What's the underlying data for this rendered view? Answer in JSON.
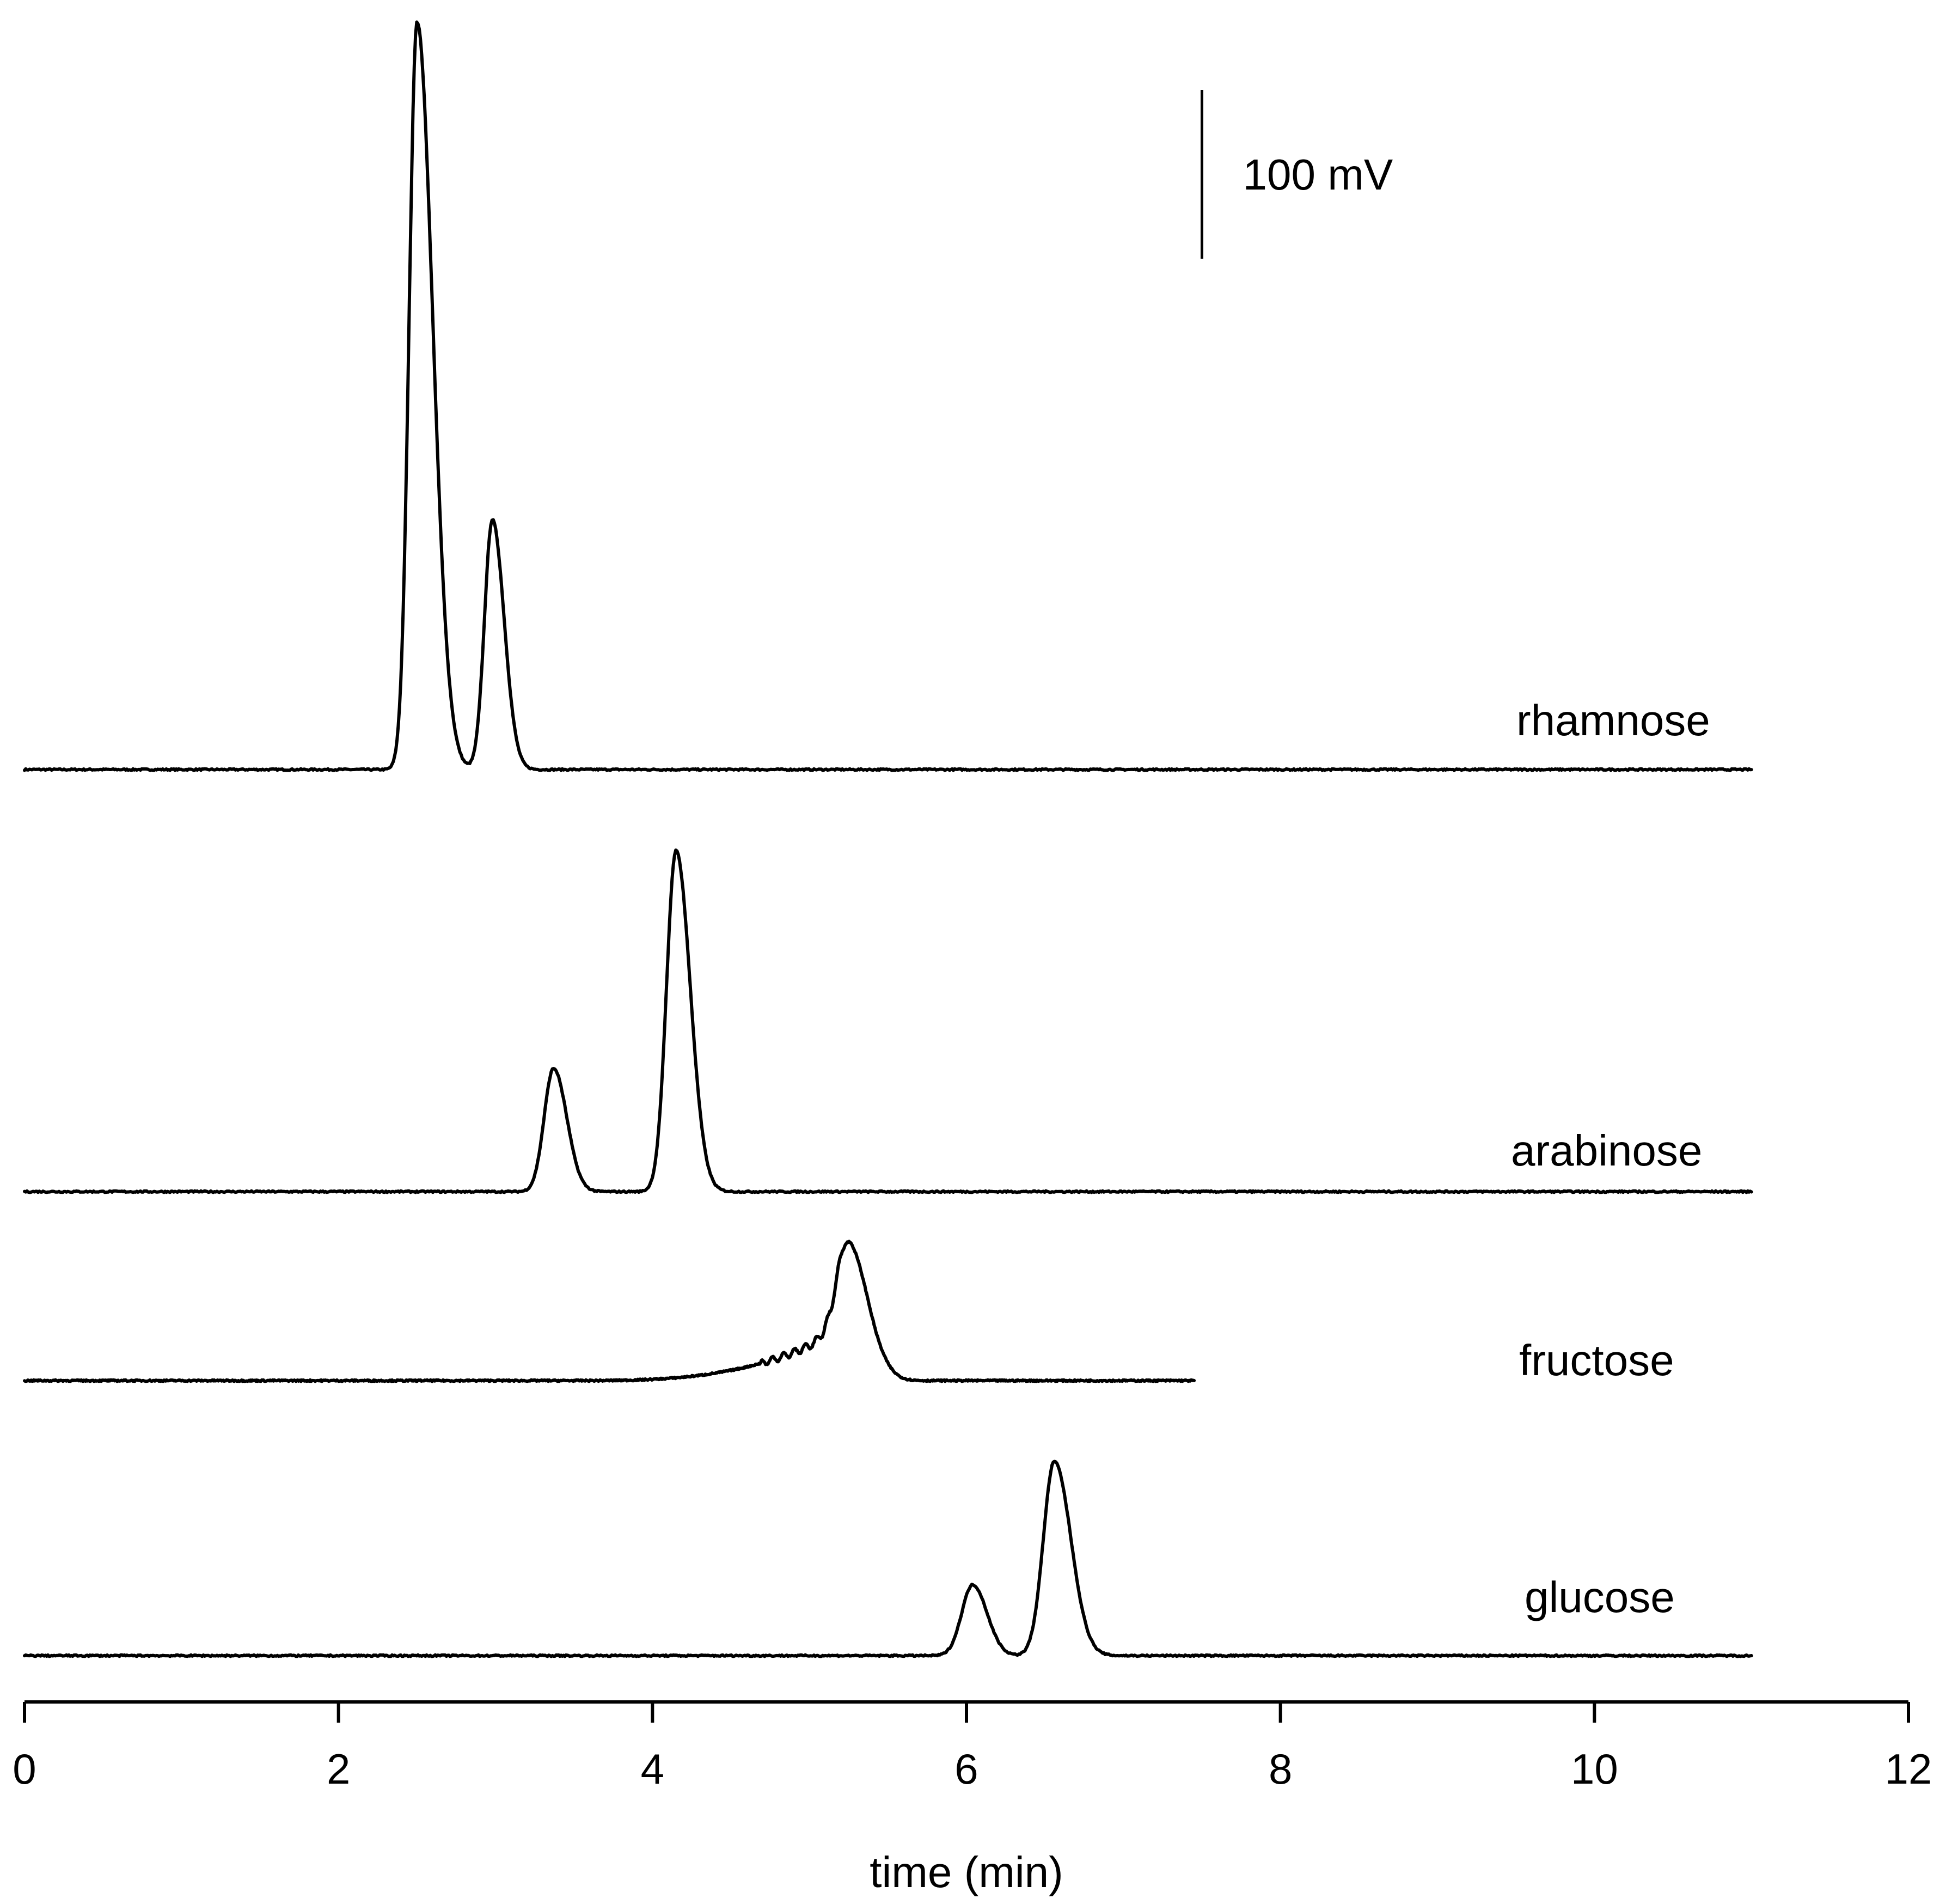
{
  "chart_data": {
    "type": "line",
    "xlabel": "time (min)",
    "ylabel": "",
    "xlim": [
      0,
      12
    ],
    "xticks": [
      0,
      2,
      4,
      6,
      8,
      10,
      12
    ],
    "scale_bar": {
      "label": "100 mV",
      "value_mV": 100,
      "time_min": 7.5
    },
    "grid": false,
    "series": [
      {
        "name": "rhamnose",
        "x_end": 11,
        "baseline_mV": 0,
        "peaks": [
          {
            "time_min": 2.5,
            "height_mV": 443,
            "width_min": 0.05,
            "tail": 0.1
          },
          {
            "time_min": 2.98,
            "height_mV": 148,
            "width_min": 0.05,
            "tail": 0.05
          }
        ]
      },
      {
        "name": "arabinose",
        "x_end": 11,
        "baseline_mV": 0,
        "peaks": [
          {
            "time_min": 3.37,
            "height_mV": 73,
            "width_min": 0.06,
            "tail": 0.04
          },
          {
            "time_min": 4.15,
            "height_mV": 202,
            "width_min": 0.06,
            "tail": 0.05
          }
        ]
      },
      {
        "name": "fructose",
        "x_end": 7.45,
        "baseline_mV": 0,
        "peaks": [
          {
            "time_min": 5.27,
            "height_mV": 65,
            "width_min": 0.08,
            "tail": 0.05
          }
        ],
        "front_shoulder": {
          "start_min": 3.5,
          "end_min": 5.2,
          "height_mV": 30
        }
      },
      {
        "name": "glucose",
        "x_end": 11,
        "baseline_mV": 0,
        "peaks": [
          {
            "time_min": 6.04,
            "height_mV": 42,
            "width_min": 0.07,
            "tail": 0.03
          },
          {
            "time_min": 6.56,
            "height_mV": 115,
            "width_min": 0.07,
            "tail": 0.05
          }
        ]
      }
    ]
  }
}
